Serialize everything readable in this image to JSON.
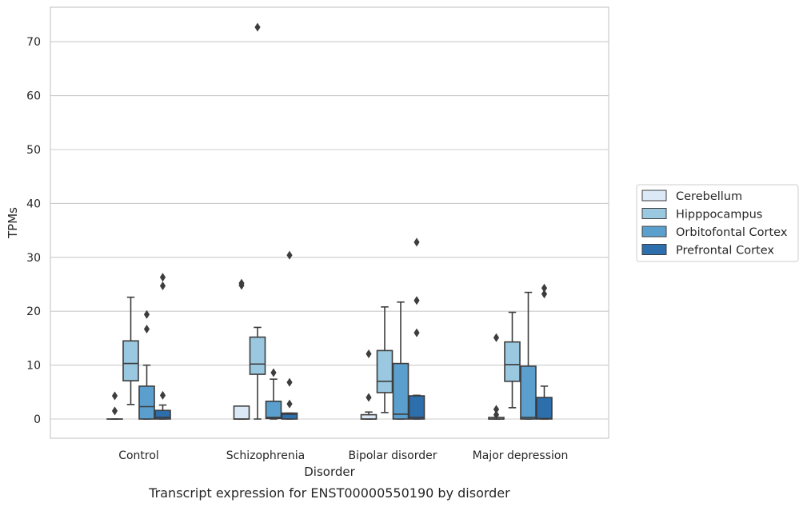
{
  "caption": "Transcript expression for ENST00000550190 by disorder",
  "chart_data": {
    "type": "boxplot",
    "xlabel": "Disorder",
    "ylabel": "TPMs",
    "ylim": [
      -3.5,
      76
    ],
    "yticks": [
      0,
      10,
      20,
      30,
      40,
      50,
      60,
      70
    ],
    "grid": true,
    "legend_position": "right",
    "categories": [
      "Control",
      "Schizophrenia",
      "Bipolar disorder",
      "Major depression"
    ],
    "series": [
      {
        "name": "Cerebellum",
        "color": "#dbe9f6",
        "boxes": [
          {
            "whislo": 0,
            "q1": 0,
            "med": 0,
            "q3": 0,
            "whishi": 0,
            "fliers": [
              1.5,
              4.3
            ]
          },
          {
            "whislo": 0,
            "q1": 0,
            "med": 0,
            "q3": 2.4,
            "whishi": 2.4,
            "fliers": [
              24.8,
              25.2
            ]
          },
          {
            "whislo": 0,
            "q1": 0,
            "med": 0,
            "q3": 0.8,
            "whishi": 1.3,
            "fliers": [
              4.0,
              12.1
            ]
          },
          {
            "whislo": 0,
            "q1": 0,
            "med": 0,
            "q3": 0.3,
            "whishi": 0.3,
            "fliers": [
              0.8,
              1.8,
              15.1
            ]
          }
        ]
      },
      {
        "name": "Hipppocampus",
        "color": "#9ac8e0",
        "boxes": [
          {
            "whislo": 2.7,
            "q1": 7.1,
            "med": 10.3,
            "q3": 14.5,
            "whishi": 22.6,
            "fliers": []
          },
          {
            "whislo": 0,
            "q1": 8.3,
            "med": 10.2,
            "q3": 15.2,
            "whishi": 17.0,
            "fliers": [
              72.7
            ]
          },
          {
            "whislo": 1.2,
            "q1": 4.9,
            "med": 7.0,
            "q3": 12.7,
            "whishi": 20.8,
            "fliers": []
          },
          {
            "whislo": 2.1,
            "q1": 7.0,
            "med": 10.1,
            "q3": 14.3,
            "whishi": 19.8,
            "fliers": []
          }
        ]
      },
      {
        "name": "Orbitofontal Cortex",
        "color": "#5a9fcd",
        "boxes": [
          {
            "whislo": 0,
            "q1": 0,
            "med": 2.3,
            "q3": 6.1,
            "whishi": 10.0,
            "fliers": [
              16.7,
              19.4
            ]
          },
          {
            "whislo": 0,
            "q1": 0.1,
            "med": 0.3,
            "q3": 3.3,
            "whishi": 7.4,
            "fliers": [
              8.6
            ]
          },
          {
            "whislo": 0,
            "q1": 0,
            "med": 0.9,
            "q3": 10.3,
            "whishi": 21.7,
            "fliers": []
          },
          {
            "whislo": 0,
            "q1": 0,
            "med": 0.3,
            "q3": 9.8,
            "whishi": 23.5,
            "fliers": []
          }
        ]
      },
      {
        "name": "Prefrontal Cortex",
        "color": "#2d6fac",
        "boxes": [
          {
            "whislo": 0,
            "q1": 0,
            "med": 0.3,
            "q3": 1.6,
            "whishi": 2.6,
            "fliers": [
              4.4,
              24.7,
              26.3
            ]
          },
          {
            "whislo": 0,
            "q1": 0,
            "med": 0.9,
            "q3": 1.1,
            "whishi": 1.1,
            "fliers": [
              2.8,
              6.8,
              30.4
            ]
          },
          {
            "whislo": 0,
            "q1": 0,
            "med": 0.3,
            "q3": 4.3,
            "whishi": 4.4,
            "fliers": [
              16.0,
              22.0,
              32.8
            ]
          },
          {
            "whislo": 0,
            "q1": 0,
            "med": 0.1,
            "q3": 4.0,
            "whishi": 6.1,
            "fliers": [
              23.2,
              24.3
            ]
          }
        ]
      }
    ]
  }
}
